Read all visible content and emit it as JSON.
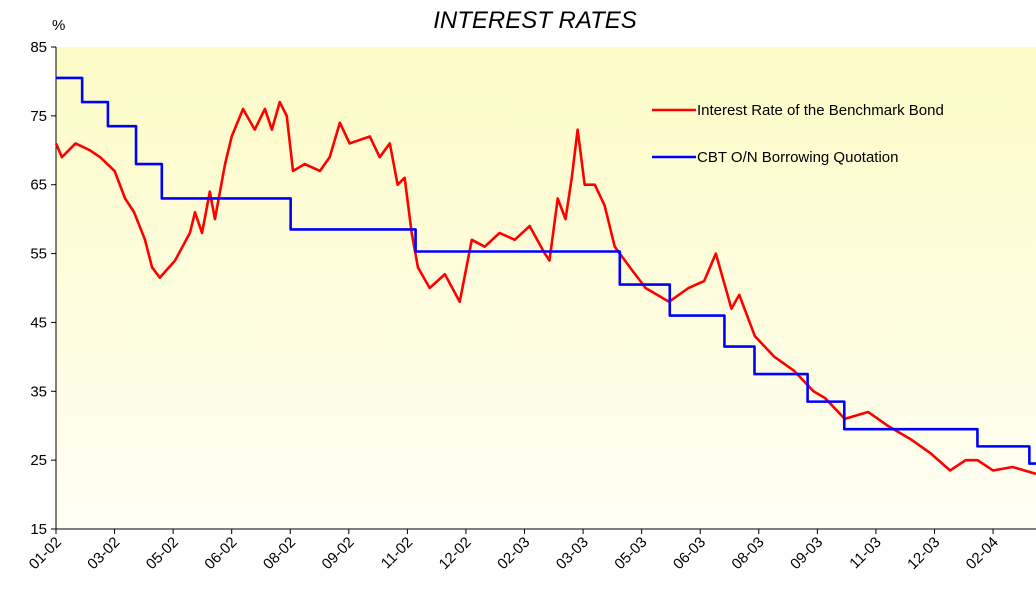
{
  "chart_data": {
    "type": "line",
    "title": "INTEREST RATES",
    "y_label": "%",
    "xlim": [
      0,
      25.1
    ],
    "ylim": [
      15,
      85
    ],
    "yticks": [
      15,
      25,
      35,
      45,
      55,
      65,
      75,
      85
    ],
    "xticks": [
      {
        "value": 0,
        "label": "01-02"
      },
      {
        "value": 1.5,
        "label": "03-02"
      },
      {
        "value": 3,
        "label": "05-02"
      },
      {
        "value": 4.5,
        "label": "06-02"
      },
      {
        "value": 6,
        "label": "08-02"
      },
      {
        "value": 7.5,
        "label": "09-02"
      },
      {
        "value": 9,
        "label": "11-02"
      },
      {
        "value": 10.5,
        "label": "12-02"
      },
      {
        "value": 12,
        "label": "02-03"
      },
      {
        "value": 13.5,
        "label": "03-03"
      },
      {
        "value": 15,
        "label": "05-03"
      },
      {
        "value": 16.5,
        "label": "06-03"
      },
      {
        "value": 18,
        "label": "08-03"
      },
      {
        "value": 19.5,
        "label": "09-03"
      },
      {
        "value": 21,
        "label": "11-03"
      },
      {
        "value": 22.5,
        "label": "12-03"
      },
      {
        "value": 24,
        "label": "02-04"
      }
    ],
    "legend": "upper right",
    "grid": false,
    "series": [
      {
        "name": "Interest Rate of the Benchmark Bond",
        "color": "#ff0000",
        "x": [
          0,
          0.15,
          0.5,
          0.87,
          1.13,
          1.5,
          1.77,
          2.0,
          2.28,
          2.46,
          2.66,
          3.05,
          3.43,
          3.56,
          3.74,
          3.94,
          4.07,
          4.33,
          4.5,
          4.79,
          5.09,
          5.35,
          5.53,
          5.73,
          5.91,
          6.07,
          6.37,
          6.76,
          7.01,
          7.27,
          7.52,
          8.04,
          8.29,
          8.55,
          8.75,
          8.93,
          9.11,
          9.27,
          9.57,
          9.96,
          10.34,
          10.65,
          10.98,
          11.36,
          11.75,
          12.13,
          12.52,
          12.64,
          12.85,
          13.05,
          13.21,
          13.36,
          13.54,
          13.8,
          14.05,
          14.31,
          14.7,
          15.1,
          15.7,
          16.2,
          16.6,
          16.9,
          17.3,
          17.5,
          17.9,
          18.4,
          18.9,
          19.4,
          19.7,
          20.2,
          20.8,
          21.3,
          21.9,
          22.4,
          22.9,
          23.3,
          23.6,
          24.0,
          24.5,
          25.1
        ],
        "values": [
          71,
          69,
          71,
          70,
          69,
          67,
          63,
          61,
          57,
          53,
          51.5,
          54,
          58,
          61,
          58,
          64,
          60,
          68,
          72,
          76,
          73,
          76,
          73,
          77,
          75,
          67,
          68,
          67,
          69,
          74,
          71,
          72,
          69,
          71,
          65,
          66,
          58,
          53,
          50,
          52,
          48,
          57,
          56,
          58,
          57,
          59,
          55,
          54,
          63,
          60,
          66,
          73,
          65,
          65,
          62,
          56,
          53,
          50,
          48,
          50,
          51,
          55,
          47,
          49,
          43,
          40,
          38,
          35,
          34,
          31,
          32,
          30,
          28,
          26,
          23.5,
          25,
          25,
          23.5,
          24,
          23
        ]
      },
      {
        "name": "CBT O/N Borrowing Quotation",
        "color": "#0000ff",
        "x": [
          0,
          0.67,
          0.67,
          1.33,
          1.33,
          2.05,
          2.05,
          2.71,
          2.71,
          6.01,
          6.01,
          9.21,
          9.21,
          14.44,
          14.44,
          15.72,
          15.72,
          17.12,
          17.12,
          17.89,
          17.89,
          19.25,
          19.25,
          20.19,
          20.19,
          23.6,
          23.6,
          24.93,
          24.93,
          25.1
        ],
        "values": [
          80.5,
          80.5,
          77,
          77,
          73.5,
          73.5,
          68,
          68,
          63,
          63,
          58.5,
          58.5,
          55.3,
          55.3,
          50.5,
          50.5,
          46,
          46,
          41.5,
          41.5,
          37.5,
          37.5,
          33.5,
          33.5,
          29.5,
          29.5,
          27,
          27,
          24.5,
          24.5
        ]
      }
    ]
  }
}
